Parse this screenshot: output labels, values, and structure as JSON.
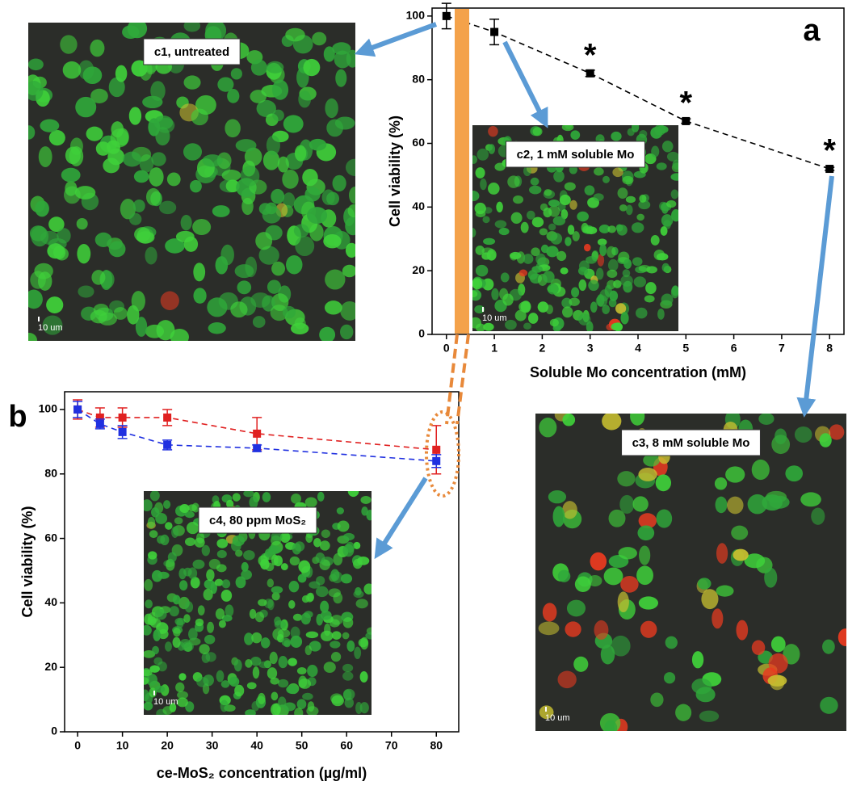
{
  "chart_data": [
    {
      "type": "line",
      "panel": "a",
      "x": [
        0,
        1,
        3,
        5,
        8
      ],
      "series": [
        {
          "color": "#000000",
          "values": [
            100,
            95,
            82,
            67,
            52
          ],
          "errors": [
            4,
            4,
            1,
            0.7,
            0.5
          ]
        }
      ],
      "x_label": "Soluble Mo concentration (mM)",
      "y_label": "Cell viability (%)",
      "xlim": [
        -0.3,
        8.3
      ],
      "xticks": [
        0,
        1,
        2,
        3,
        4,
        5,
        6,
        7,
        8
      ],
      "ylim": [
        0,
        102.5
      ],
      "yticks": [
        0,
        20,
        40,
        60,
        80,
        100
      ],
      "annotations": [
        {
          "text": "*",
          "x": 3
        },
        {
          "text": "*",
          "x": 5
        },
        {
          "text": "*",
          "x": 8
        }
      ]
    },
    {
      "type": "line",
      "panel": "b",
      "x": [
        0,
        5,
        10,
        20,
        40,
        80
      ],
      "series": [
        {
          "color": "#e02020",
          "values": [
            100,
            97.5,
            97.5,
            97.5,
            92.5,
            87.5
          ],
          "errors": [
            3,
            3,
            3,
            2.5,
            5,
            7.5
          ]
        },
        {
          "color": "#2030e0",
          "values": [
            100,
            95.5,
            93,
            89,
            88,
            84
          ],
          "errors": [
            2.5,
            1.5,
            2,
            1.5,
            1,
            2
          ]
        }
      ],
      "x_label": "ce-MoS₂ concentration (µg/ml)",
      "y_label": "Cell viability (%)",
      "xlim": [
        -2.9,
        85
      ],
      "xticks": [
        0,
        10,
        20,
        30,
        40,
        50,
        60,
        70,
        80
      ],
      "ylim": [
        0,
        105.5
      ],
      "yticks": [
        0,
        20,
        40,
        60,
        80,
        100
      ],
      "annotations": []
    }
  ],
  "images": [
    {
      "label": "c1, untreated",
      "scale_bar": "10 um"
    },
    {
      "label": "c2, 1 mM soluble Mo",
      "scale_bar": "10 um"
    },
    {
      "label": "c3, 8 mM soluble Mo",
      "scale_bar": "10 um"
    },
    {
      "label": "c4, 80 ppm MoS₂",
      "scale_bar": "10 um"
    }
  ]
}
